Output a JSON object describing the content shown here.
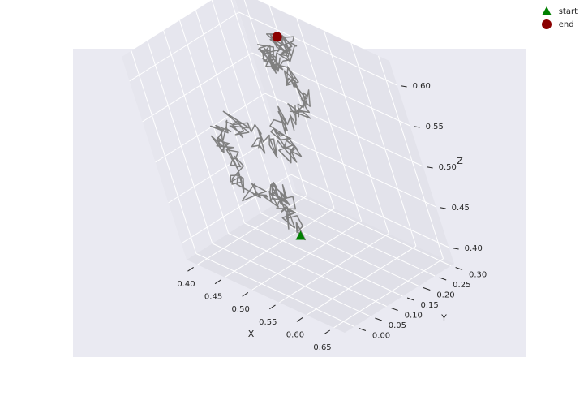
{
  "chart_data": {
    "type": "line3d",
    "xlabel": "X",
    "ylabel": "Y",
    "zlabel": "Z",
    "xlim": [
      0.38,
      0.67
    ],
    "ylim": [
      -0.03,
      0.31
    ],
    "zlim": [
      0.38,
      0.63
    ],
    "xticks": [
      "0.40",
      "0.45",
      "0.50",
      "0.55",
      "0.60",
      "0.65"
    ],
    "yticks": [
      "0.00",
      "0.05",
      "0.10",
      "0.15",
      "0.20",
      "0.25",
      "0.30"
    ],
    "zticks": [
      "0.40",
      "0.45",
      "0.50",
      "0.55",
      "0.60"
    ],
    "grid": true,
    "legend_position": "top-right",
    "colors": {
      "path": "#808080",
      "pane": "#eaeaf2",
      "start": "#008000",
      "end": "#8b0000"
    },
    "series": [
      {
        "name": "start",
        "marker": "triangle",
        "point": {
          "x": 0.575,
          "y": 0.05,
          "z": 0.45
        }
      },
      {
        "name": "end",
        "marker": "circle",
        "point": {
          "x": 0.47,
          "y": 0.28,
          "z": 0.605
        }
      }
    ],
    "path": {
      "x": [
        0.575,
        0.56,
        0.55,
        0.54,
        0.53,
        0.51,
        0.5,
        0.48,
        0.46,
        0.44,
        0.43,
        0.41,
        0.4,
        0.41,
        0.43,
        0.45,
        0.47,
        0.49,
        0.5,
        0.48,
        0.47,
        0.49,
        0.51,
        0.52,
        0.5,
        0.48,
        0.47,
        0.45,
        0.46,
        0.48,
        0.47,
        0.49,
        0.5,
        0.48,
        0.47
      ],
      "y": [
        0.05,
        0.06,
        0.07,
        0.08,
        0.09,
        0.1,
        0.11,
        0.1,
        0.09,
        0.1,
        0.11,
        0.12,
        0.13,
        0.14,
        0.15,
        0.16,
        0.17,
        0.18,
        0.19,
        0.2,
        0.21,
        0.22,
        0.23,
        0.24,
        0.25,
        0.26,
        0.27,
        0.26,
        0.25,
        0.24,
        0.25,
        0.26,
        0.27,
        0.28,
        0.28
      ],
      "z": [
        0.45,
        0.455,
        0.46,
        0.465,
        0.47,
        0.47,
        0.46,
        0.455,
        0.46,
        0.47,
        0.48,
        0.49,
        0.5,
        0.51,
        0.52,
        0.51,
        0.5,
        0.49,
        0.5,
        0.51,
        0.52,
        0.53,
        0.54,
        0.55,
        0.56,
        0.57,
        0.58,
        0.57,
        0.58,
        0.59,
        0.6,
        0.61,
        0.6,
        0.605,
        0.605
      ]
    }
  },
  "legend": {
    "items": [
      {
        "label": "start"
      },
      {
        "label": "end"
      }
    ]
  }
}
